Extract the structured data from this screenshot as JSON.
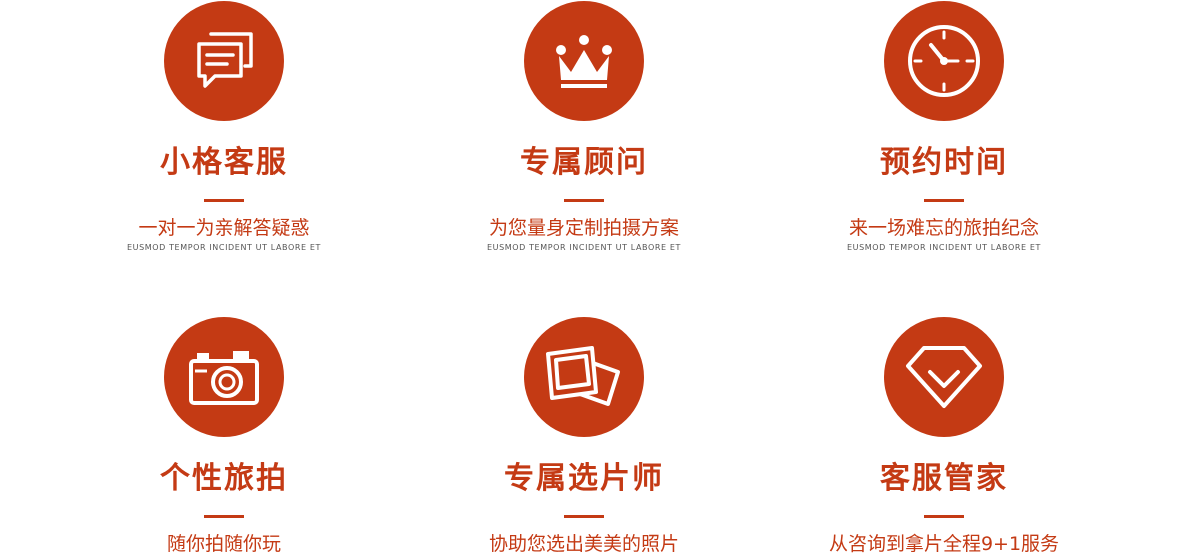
{
  "theme": {
    "accent": "#c43a14"
  },
  "features": [
    {
      "icon": "chat-bubbles-icon",
      "title": "小格客服",
      "desc": "一对一为亲解答疑惑",
      "sub": "EUSMOD TEMPOR INCIDENT UT LABORE ET"
    },
    {
      "icon": "crown-icon",
      "title": "专属顾问",
      "desc": "为您量身定制拍摄方案",
      "sub": "EUSMOD TEMPOR INCIDENT UT LABORE ET"
    },
    {
      "icon": "clock-icon",
      "title": "预约时间",
      "desc": "来一场难忘的旅拍纪念",
      "sub": "EUSMOD TEMPOR INCIDENT UT LABORE ET"
    },
    {
      "icon": "camera-icon",
      "title": "个性旅拍",
      "desc": "随你拍随你玩",
      "sub": ""
    },
    {
      "icon": "photos-icon",
      "title": "专属选片师",
      "desc": "协助您选出美美的照片",
      "sub": ""
    },
    {
      "icon": "diamond-icon",
      "title": "客服管家",
      "desc": "从咨询到拿片全程9+1服务",
      "sub": ""
    }
  ]
}
